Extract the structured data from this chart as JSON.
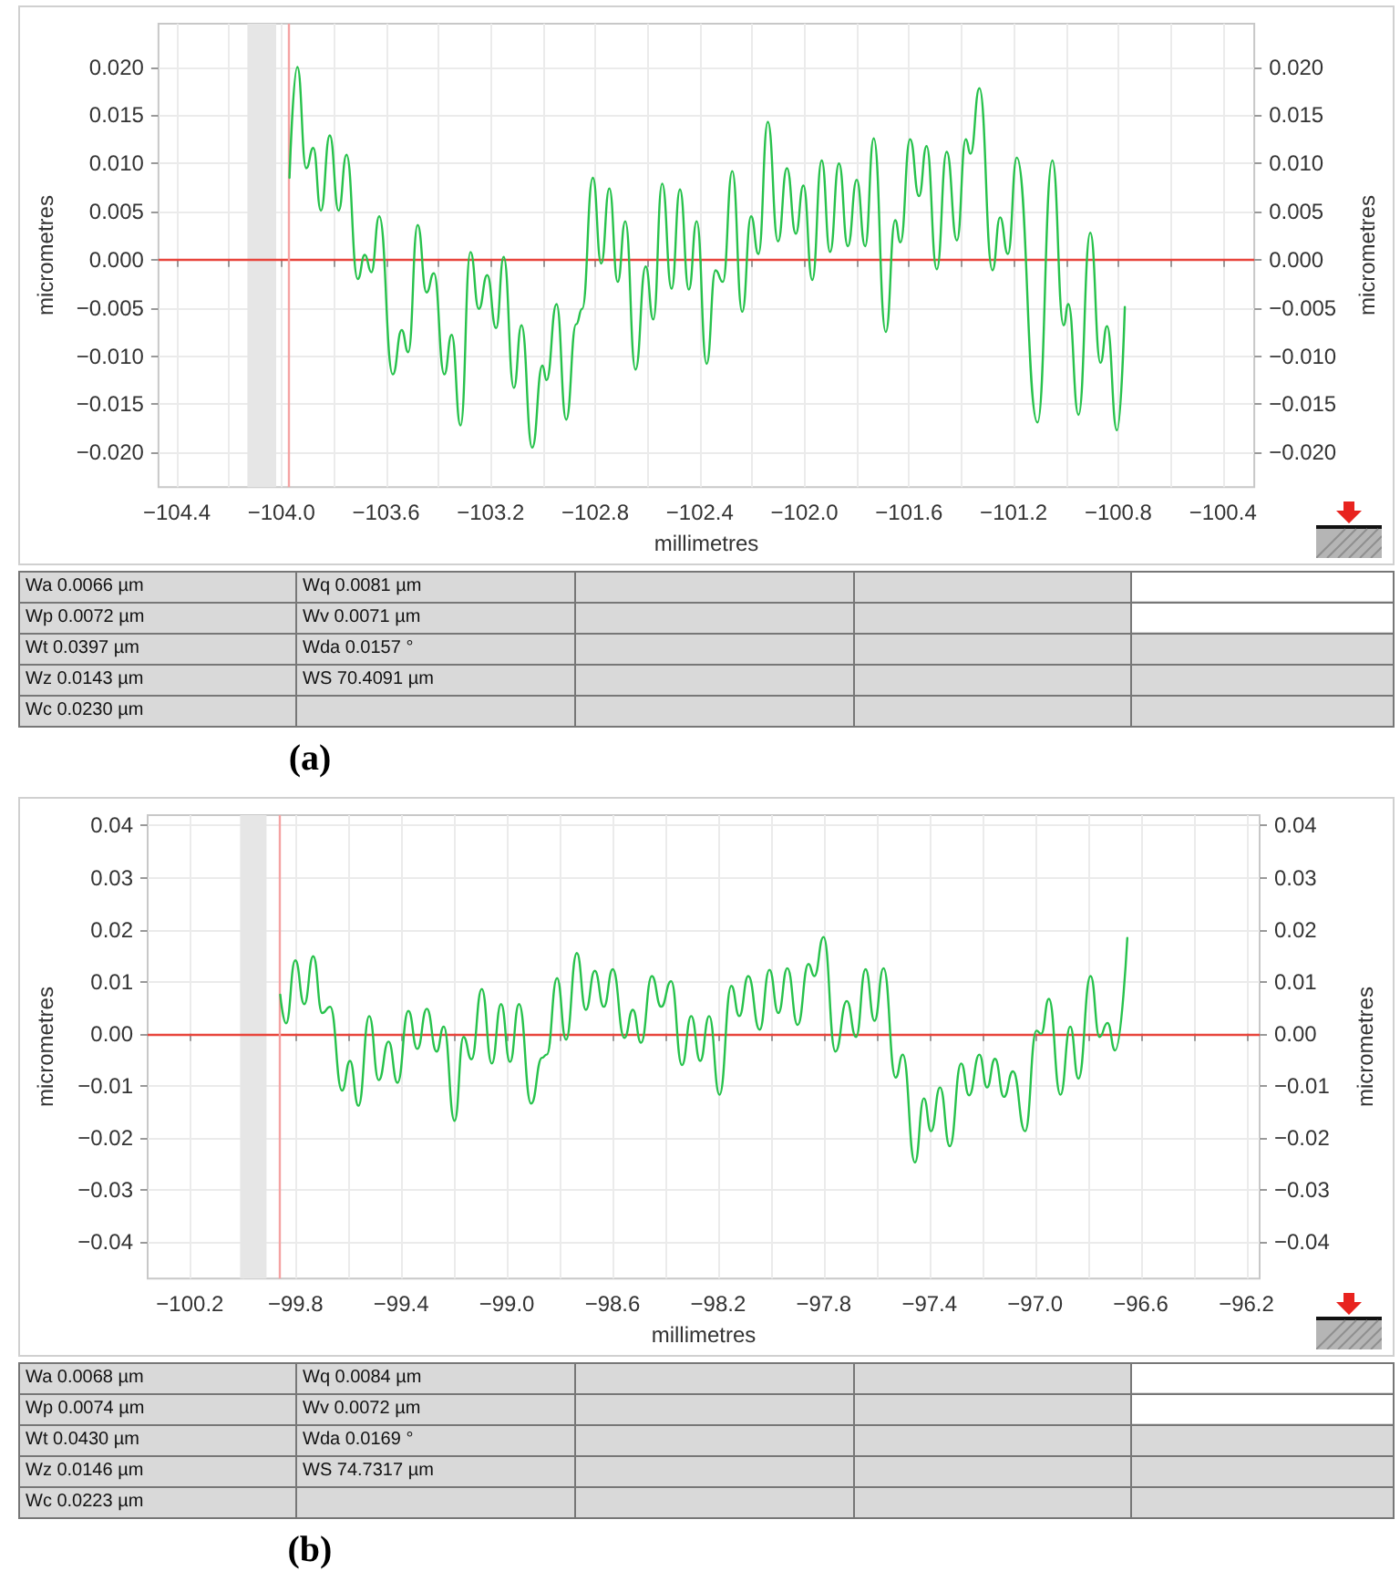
{
  "chart_data": [
    {
      "type": "line",
      "title": "(a)",
      "xlabel": "millimetres",
      "ylabel": "micrometres",
      "y2label": "micrometres",
      "color": "#27c24c",
      "marker": "none",
      "grid": true,
      "x": [
        -103.969,
        -103.939,
        -103.905,
        -103.878,
        -103.849,
        -103.815,
        -103.781,
        -103.751,
        -103.708,
        -103.681,
        -103.656,
        -103.626,
        -103.574,
        -103.54,
        -103.515,
        -103.479,
        -103.445,
        -103.417,
        -103.377,
        -103.349,
        -103.315,
        -103.277,
        -103.245,
        -103.213,
        -103.179,
        -103.15,
        -103.111,
        -103.082,
        -103.041,
        -103.002,
        -102.986,
        -102.948,
        -102.911,
        -102.873,
        -102.85,
        -102.809,
        -102.777,
        -102.746,
        -102.714,
        -102.685,
        -102.646,
        -102.607,
        -102.578,
        -102.544,
        -102.508,
        -102.476,
        -102.442,
        -102.412,
        -102.374,
        -102.34,
        -102.312,
        -102.276,
        -102.238,
        -102.204,
        -102.176,
        -102.14,
        -102.101,
        -102.067,
        -102.033,
        -102.004,
        -101.97,
        -101.934,
        -101.902,
        -101.868,
        -101.834,
        -101.8,
        -101.768,
        -101.735,
        -101.689,
        -101.653,
        -101.633,
        -101.596,
        -101.562,
        -101.533,
        -101.494,
        -101.456,
        -101.417,
        -101.383,
        -101.365,
        -101.331,
        -101.281,
        -101.252,
        -101.222,
        -101.188,
        -101.109,
        -101.052,
        -101.009,
        -100.991,
        -100.952,
        -100.907,
        -100.868,
        -100.843,
        -100.805,
        -100.775
      ],
      "values": [
        0.0085,
        0.02,
        0.0095,
        0.0116,
        0.0051,
        0.0129,
        0.0051,
        0.0109,
        -0.002,
        0.0005,
        -0.0013,
        0.0045,
        -0.0119,
        -0.0073,
        -0.0096,
        0.0036,
        -0.0034,
        -0.0014,
        -0.0119,
        -0.0078,
        -0.0172,
        0.0008,
        -0.0051,
        -0.0016,
        -0.0071,
        0.0003,
        -0.0133,
        -0.0068,
        -0.0195,
        -0.011,
        -0.0125,
        -0.0046,
        -0.0166,
        -0.0067,
        -0.0051,
        0.0085,
        -0.0004,
        0.0074,
        -0.0023,
        0.004,
        -0.0114,
        -0.0007,
        -0.0062,
        0.0079,
        -0.003,
        0.0073,
        -0.0031,
        0.004,
        -0.0108,
        -0.0011,
        -0.0023,
        0.0092,
        -0.0054,
        0.0045,
        0.0006,
        0.0143,
        0.0019,
        0.0095,
        0.0027,
        0.0077,
        -0.0021,
        0.0103,
        0.0008,
        0.01,
        0.0014,
        0.0083,
        0.0014,
        0.0126,
        -0.0075,
        0.0041,
        0.0018,
        0.0125,
        0.0066,
        0.0118,
        -0.001,
        0.0112,
        0.002,
        0.0125,
        0.011,
        0.0178,
        -0.0011,
        0.0044,
        0.0006,
        0.0106,
        -0.0169,
        0.0103,
        -0.0068,
        -0.0046,
        -0.0161,
        0.0028,
        -0.0107,
        -0.0069,
        -0.0177,
        -0.0049
      ],
      "xlim": [
        -104.47,
        -100.28
      ],
      "xticks": [
        {
          "value": -104.4,
          "label": "−104.4"
        },
        {
          "value": -104.2,
          "label": null
        },
        {
          "value": -104.0,
          "label": "−104.0"
        },
        {
          "value": -103.8,
          "label": null
        },
        {
          "value": -103.6,
          "label": "−103.6"
        },
        {
          "value": -103.4,
          "label": null
        },
        {
          "value": -103.2,
          "label": "−103.2"
        },
        {
          "value": -103.0,
          "label": null
        },
        {
          "value": -102.8,
          "label": "−102.8"
        },
        {
          "value": -102.6,
          "label": null
        },
        {
          "value": -102.4,
          "label": "−102.4"
        },
        {
          "value": -102.2,
          "label": null
        },
        {
          "value": -102.0,
          "label": "−102.0"
        },
        {
          "value": -101.8,
          "label": null
        },
        {
          "value": -101.6,
          "label": "−101.6"
        },
        {
          "value": -101.4,
          "label": null
        },
        {
          "value": -101.2,
          "label": "−101.2"
        },
        {
          "value": -101.0,
          "label": null
        },
        {
          "value": -100.8,
          "label": "−100.8"
        },
        {
          "value": -100.6,
          "label": null
        },
        {
          "value": -100.4,
          "label": "−100.4"
        }
      ],
      "ylim": [
        -0.0236,
        0.0245
      ],
      "yticks": [
        {
          "value": -0.02,
          "label": "−0.020"
        },
        {
          "value": -0.015,
          "label": "−0.015"
        },
        {
          "value": -0.01,
          "label": "−0.010"
        },
        {
          "value": -0.005,
          "label": "−0.005"
        },
        {
          "value": 0,
          "label": "0.000"
        },
        {
          "value": 0.005,
          "label": "0.005"
        },
        {
          "value": 0.01,
          "label": "0.010"
        },
        {
          "value": 0.015,
          "label": "0.015"
        },
        {
          "value": 0.02,
          "label": "0.020"
        }
      ],
      "y2lim": [
        -0.0236,
        0.0245
      ],
      "y2ticks": [
        {
          "value": -0.02,
          "label": "−0.020"
        },
        {
          "value": -0.015,
          "label": "−0.015"
        },
        {
          "value": -0.01,
          "label": "−0.010"
        },
        {
          "value": -0.005,
          "label": "−0.005"
        },
        {
          "value": 0,
          "label": "0.000"
        },
        {
          "value": 0.005,
          "label": "0.005"
        },
        {
          "value": 0.01,
          "label": "0.010"
        },
        {
          "value": 0.015,
          "label": "0.015"
        },
        {
          "value": 0.02,
          "label": "0.020"
        }
      ],
      "ref_lines": [
        {
          "axis": "y",
          "value": 0,
          "color": "#e8453c"
        },
        {
          "axis": "x",
          "value": -103.97,
          "color": "#f4a3a3"
        }
      ],
      "bands": [
        {
          "axis": "x",
          "from": -104.13,
          "to": -104.02,
          "color": "#e6e6e6"
        }
      ],
      "annotations": [
        "Wa 0.0066 µm",
        "Wq 0.0081 µm",
        "Wp 0.0072 µm",
        "Wv 0.0071 µm",
        "Wt 0.0397 µm",
        "Wda 0.0157 °",
        "Wz 0.0143 µm",
        "WS 70.4091 µm",
        "Wc 0.0230 µm"
      ]
    },
    {
      "type": "line",
      "title": "(b)",
      "xlabel": "millimetres",
      "ylabel": "micrometres",
      "y2label": "micrometres",
      "color": "#27c24c",
      "marker": "none",
      "grid": true,
      "x": [
        -99.858,
        -99.836,
        -99.801,
        -99.767,
        -99.733,
        -99.699,
        -99.669,
        -99.624,
        -99.594,
        -99.562,
        -99.521,
        -99.485,
        -99.448,
        -99.414,
        -99.373,
        -99.339,
        -99.303,
        -99.266,
        -99.239,
        -99.198,
        -99.164,
        -99.134,
        -99.095,
        -99.057,
        -99.022,
        -98.988,
        -98.954,
        -98.908,
        -98.867,
        -98.849,
        -98.81,
        -98.776,
        -98.735,
        -98.701,
        -98.667,
        -98.633,
        -98.599,
        -98.555,
        -98.523,
        -98.492,
        -98.451,
        -98.416,
        -98.378,
        -98.337,
        -98.302,
        -98.268,
        -98.234,
        -98.195,
        -98.15,
        -98.12,
        -98.086,
        -98.043,
        -98.006,
        -97.972,
        -97.938,
        -97.899,
        -97.858,
        -97.836,
        -97.801,
        -97.756,
        -97.713,
        -97.678,
        -97.642,
        -97.608,
        -97.574,
        -97.528,
        -97.501,
        -97.455,
        -97.421,
        -97.394,
        -97.36,
        -97.323,
        -97.28,
        -97.25,
        -97.211,
        -97.182,
        -97.152,
        -97.118,
        -97.084,
        -97.038,
        -96.995,
        -96.977,
        -96.948,
        -96.904,
        -96.867,
        -96.836,
        -96.79,
        -96.756,
        -96.726,
        -96.697,
        -96.651
      ],
      "values": [
        0.0075,
        0.002,
        0.0141,
        0.0057,
        0.0149,
        0.004,
        0.0052,
        -0.0109,
        -0.0052,
        -0.0138,
        0.0034,
        -0.0089,
        -0.0015,
        -0.0094,
        0.0044,
        -0.0029,
        0.0048,
        -0.0034,
        0.0014,
        -0.0167,
        -0.0006,
        -0.0049,
        0.0086,
        -0.0057,
        0.0057,
        -0.0054,
        0.0057,
        -0.0134,
        -0.0046,
        -0.004,
        0.0107,
        -0.0011,
        0.0155,
        0.0046,
        0.0121,
        0.0052,
        0.0124,
        -0.0008,
        0.0046,
        -0.0017,
        0.0111,
        0.0052,
        0.0101,
        -0.006,
        0.0034,
        -0.0052,
        0.0034,
        -0.0117,
        0.0092,
        0.0034,
        0.0111,
        0.0008,
        0.0123,
        0.004,
        0.0126,
        0.0017,
        0.0134,
        0.0111,
        0.0186,
        -0.0034,
        0.0063,
        -0.0006,
        0.0124,
        0.0025,
        0.0126,
        -0.0084,
        -0.004,
        -0.0247,
        -0.0124,
        -0.0187,
        -0.0103,
        -0.0216,
        -0.0057,
        -0.0118,
        -0.004,
        -0.0103,
        -0.0048,
        -0.0121,
        -0.0072,
        -0.0187,
        0.0006,
        0,
        0.0067,
        -0.0117,
        0.0014,
        -0.0086,
        0.0111,
        -0.0006,
        0.0021,
        -0.0032,
        0.0184
      ],
      "xlim": [
        -100.36,
        -96.15
      ],
      "xticks": [
        {
          "value": -100.2,
          "label": "−100.2"
        },
        {
          "value": -100.0,
          "label": null
        },
        {
          "value": -99.8,
          "label": "−99.8"
        },
        {
          "value": -99.6,
          "label": null
        },
        {
          "value": -99.4,
          "label": "−99.4"
        },
        {
          "value": -99.2,
          "label": null
        },
        {
          "value": -99.0,
          "label": "−99.0"
        },
        {
          "value": -98.8,
          "label": null
        },
        {
          "value": -98.6,
          "label": "−98.6"
        },
        {
          "value": -98.4,
          "label": null
        },
        {
          "value": -98.2,
          "label": "−98.2"
        },
        {
          "value": -98.0,
          "label": null
        },
        {
          "value": -97.8,
          "label": "−97.8"
        },
        {
          "value": -97.6,
          "label": null
        },
        {
          "value": -97.4,
          "label": "−97.4"
        },
        {
          "value": -97.2,
          "label": null
        },
        {
          "value": -97.0,
          "label": "−97.0"
        },
        {
          "value": -96.8,
          "label": null
        },
        {
          "value": -96.6,
          "label": "−96.6"
        },
        {
          "value": -96.4,
          "label": null
        },
        {
          "value": -96.2,
          "label": "−96.2"
        }
      ],
      "ylim": [
        -0.047,
        0.042
      ],
      "yticks": [
        {
          "value": -0.04,
          "label": "−0.04"
        },
        {
          "value": -0.03,
          "label": "−0.03"
        },
        {
          "value": -0.02,
          "label": "−0.02"
        },
        {
          "value": -0.01,
          "label": "−0.01"
        },
        {
          "value": 0,
          "label": "0.00"
        },
        {
          "value": 0.01,
          "label": "0.01"
        },
        {
          "value": 0.02,
          "label": "0.02"
        },
        {
          "value": 0.03,
          "label": "0.03"
        },
        {
          "value": 0.04,
          "label": "0.04"
        }
      ],
      "y2lim": [
        -0.047,
        0.042
      ],
      "y2ticks": [
        {
          "value": -0.04,
          "label": "−0.04"
        },
        {
          "value": -0.03,
          "label": "−0.03"
        },
        {
          "value": -0.02,
          "label": "−0.02"
        },
        {
          "value": -0.01,
          "label": "−0.01"
        },
        {
          "value": 0,
          "label": "0.00"
        },
        {
          "value": 0.01,
          "label": "0.01"
        },
        {
          "value": 0.02,
          "label": "0.02"
        },
        {
          "value": 0.03,
          "label": "0.03"
        },
        {
          "value": 0.04,
          "label": "0.04"
        }
      ],
      "ref_lines": [
        {
          "axis": "y",
          "value": 0,
          "color": "#e8453c"
        },
        {
          "axis": "x",
          "value": -99.86,
          "color": "#f4a3a3"
        }
      ],
      "bands": [
        {
          "axis": "x",
          "from": -100.01,
          "to": -99.91,
          "color": "#e6e6e6"
        }
      ],
      "annotations": [
        "Wa 0.0068 µm",
        "Wq 0.0084 µm",
        "Wp 0.0074 µm",
        "Wv 0.0072 µm",
        "Wt 0.0430 µm",
        "Wda 0.0169 °",
        "Wz 0.0146 µm",
        "WS 74.7317 µm",
        "Wc 0.0223 µm"
      ]
    }
  ]
}
